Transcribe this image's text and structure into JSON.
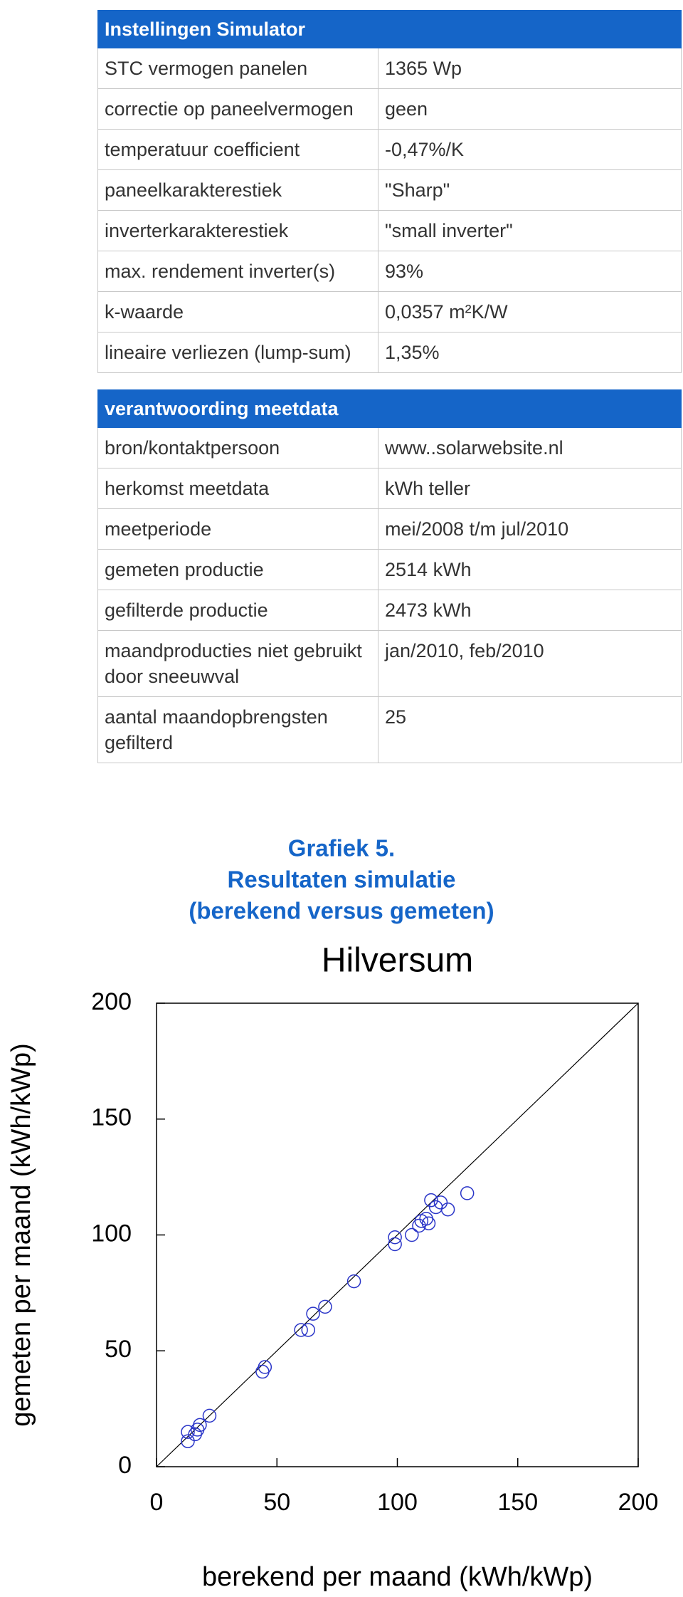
{
  "tables": [
    {
      "header": [
        "Instellingen Simulator",
        ""
      ],
      "rows": [
        [
          "STC vermogen panelen",
          "1365 Wp"
        ],
        [
          "correctie op paneelvermogen",
          "geen"
        ],
        [
          "temperatuur coefficient",
          "-0,47%/K"
        ],
        [
          "paneelkarakterestiek",
          "\"Sharp\""
        ],
        [
          "inverterkarakterestiek",
          "\"small inverter\""
        ],
        [
          "max. rendement inverter(s)",
          "93%"
        ],
        [
          "k-waarde",
          "0,0357 m²K/W"
        ],
        [
          "lineaire verliezen (lump-sum)",
          "1,35%"
        ]
      ]
    },
    {
      "header": [
        "verantwoording meetdata",
        ""
      ],
      "rows": [
        [
          "bron/kontaktpersoon",
          "www..solarwebsite.nl"
        ],
        [
          "herkomst meetdata",
          "kWh teller"
        ],
        [
          "meetperiode",
          "mei/2008 t/m jul/2010"
        ],
        [
          "gemeten productie",
          "2514 kWh"
        ],
        [
          "gefilterde productie",
          "2473 kWh"
        ],
        [
          "maandproducties niet gebruikt door sneeuwval",
          "jan/2010, feb/2010"
        ],
        [
          "aantal maandopbrengsten gefilterd",
          "25"
        ]
      ]
    }
  ],
  "chart_heading": [
    "Grafiek 5.",
    "Resultaten simulatie",
    "(berekend versus gemeten)"
  ],
  "chart_data": {
    "type": "scatter",
    "title": "Hilversum",
    "x_label": "berekend per maand (kWh/kWp)",
    "y_label": "gemeten per maand (kWh/kWp)",
    "x": [
      13,
      13,
      16,
      17,
      18,
      22,
      44,
      45,
      60,
      63,
      65,
      70,
      82,
      99,
      99,
      106,
      109,
      110,
      112,
      113,
      114,
      116,
      118,
      121,
      129
    ],
    "y": [
      11,
      15,
      14,
      16,
      18,
      22,
      41,
      43,
      59,
      59,
      66,
      69,
      80,
      96,
      99,
      100,
      104,
      106,
      107,
      105,
      115,
      112,
      114,
      111,
      118
    ],
    "color": "#2a35c8",
    "xlim": [
      0,
      200
    ],
    "ylim": [
      0,
      200
    ],
    "xticks": [
      0,
      50,
      100,
      150,
      200
    ],
    "yticks": [
      0,
      50,
      100,
      150,
      200
    ]
  }
}
